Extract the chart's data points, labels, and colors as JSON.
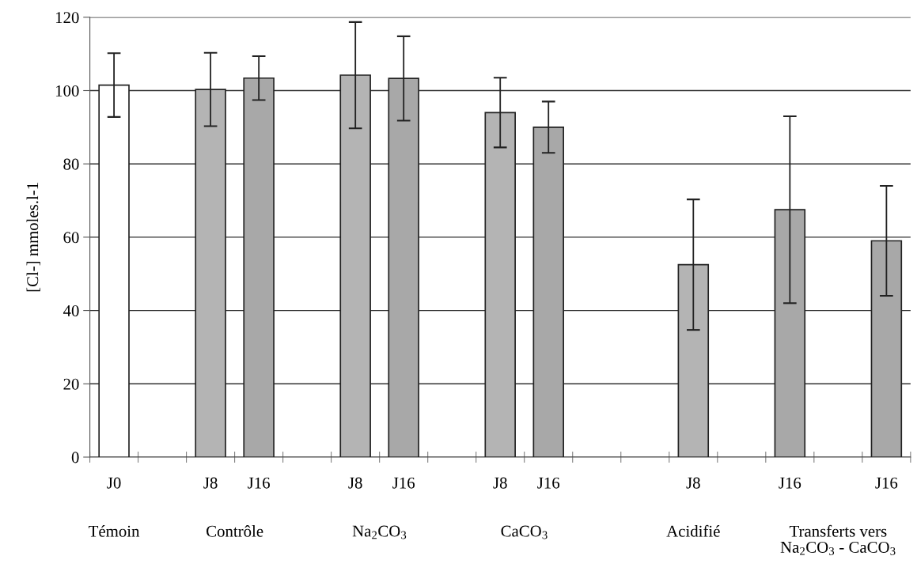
{
  "chart_data": {
    "type": "bar",
    "ylabel": "[Cl-] mmoles.l-1",
    "categories": [
      "J0",
      null,
      "J8",
      "J16",
      null,
      "J8",
      "J16",
      null,
      "J8",
      "J16",
      null,
      null,
      "J8",
      null,
      "J16",
      null,
      "J16"
    ],
    "values": [
      101.5,
      null,
      100.3,
      103.4,
      null,
      104.2,
      103.3,
      null,
      94,
      90,
      null,
      null,
      52.5,
      null,
      67.5,
      null,
      59
    ],
    "errors": [
      8.7,
      null,
      10,
      6,
      null,
      14.5,
      11.5,
      null,
      9.5,
      7,
      null,
      null,
      17.8,
      null,
      25.5,
      null,
      15
    ],
    "colors": [
      "#ffffff",
      null,
      "#b4b4b4",
      "#a8a8a8",
      null,
      "#b4b4b4",
      "#a8a8a8",
      null,
      "#b4b4b4",
      "#a8a8a8",
      null,
      null,
      "#b4b4b4",
      null,
      "#a8a8a8",
      null,
      "#a8a8a8"
    ],
    "ylim": [
      0,
      120
    ],
    "yticks": [
      0,
      20,
      40,
      60,
      80,
      100,
      120
    ],
    "grid": "y",
    "annotations": [
      "Témoin",
      "Contrôle",
      "Na$_{2}$CO$_{3}$",
      "CaCO$_{3}$",
      "Acidifié",
      "Transferts vers\nNa$_{2}$CO$_{3}$ - CaCO$_{3}$"
    ]
  }
}
